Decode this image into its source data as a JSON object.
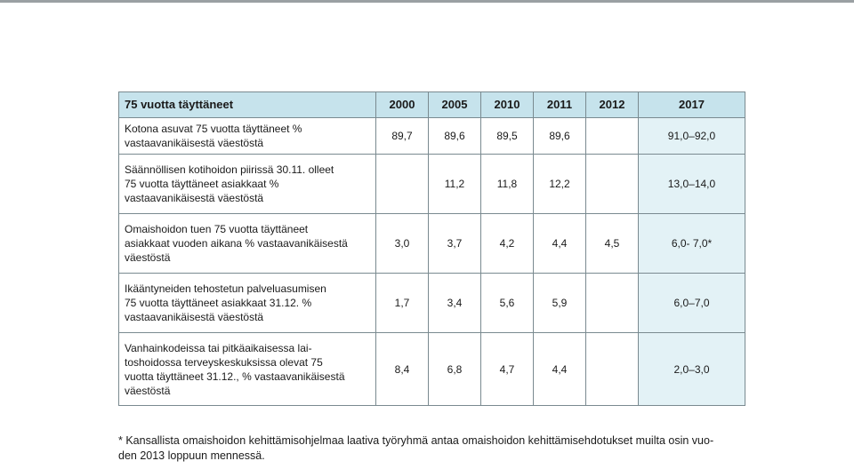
{
  "table": {
    "headers": [
      "75 vuotta täyttäneet",
      "2000",
      "2005",
      "2010",
      "2011",
      "2012",
      "2017"
    ],
    "rows": [
      {
        "label": [
          "Kotona asuvat 75 vuotta täyttäneet %",
          "vastaavanikäisestä väestöstä"
        ],
        "values": [
          "89,7",
          "89,6",
          "89,5",
          "89,6",
          "",
          "91,0–92,0"
        ]
      },
      {
        "label": [
          "Säännöllisen kotihoidon piirissä 30.11. olleet",
          "75 vuotta täyttäneet asiakkaat %",
          "vastaavanikäisestä väestöstä"
        ],
        "values": [
          "",
          "11,2",
          "11,8",
          "12,2",
          "",
          "13,0–14,0"
        ]
      },
      {
        "label": [
          "Omaishoidon tuen 75 vuotta täyttäneet",
          "asiakkaat vuoden aikana % vastaavanikäisestä",
          "väestöstä"
        ],
        "values": [
          "3,0",
          "3,7",
          "4,2",
          "4,4",
          "4,5",
          "6,0- 7,0*"
        ]
      },
      {
        "label": [
          "Ikääntyneiden tehostetun palveluasumisen",
          "75 vuotta täyttäneet asiakkaat 31.12. %",
          "vastaavanikäisestä väestöstä"
        ],
        "values": [
          "1,7",
          "3,4",
          "5,6",
          "5,9",
          "",
          "6,0–7,0"
        ]
      },
      {
        "label": [
          "Vanhainkodeissa tai pitkäaikaisessa lai-",
          "toshoidossa terveyskeskuksissa olevat 75",
          "vuotta täyttäneet 31.12., % vastaavanikäisestä",
          "väestöstä"
        ],
        "values": [
          "8,4",
          "6,8",
          "4,7",
          "4,4",
          "",
          "2,0–3,0"
        ]
      }
    ]
  },
  "footnote": [
    "* Kansallista omaishoidon kehittämisohjelmaa laativa työryhmä antaa omaishoidon kehittämisehdotukset muilta osin vuo-",
    "den 2013 loppuun mennessä."
  ]
}
